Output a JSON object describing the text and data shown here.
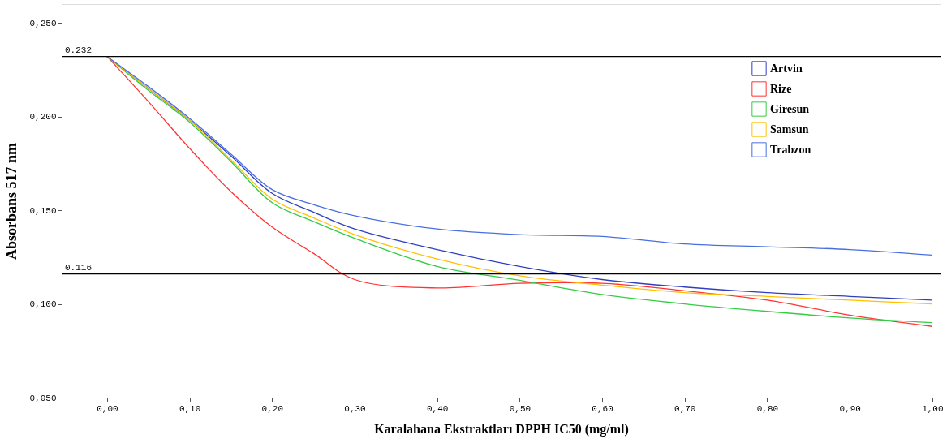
{
  "chart_data": {
    "type": "line",
    "xlabel": "Karalahana Ekstraktları DPPH IC50 (mg/ml)",
    "ylabel": "Absorbans 517 nm",
    "x": [
      0,
      0.05,
      0.1,
      0.15,
      0.2,
      0.25,
      0.3,
      0.4,
      0.5,
      0.6,
      0.7,
      0.8,
      0.9,
      1.0
    ],
    "series": [
      {
        "name": "Artvin",
        "color": "#2f3fbf",
        "values": [
          0.232,
          0.215,
          0.198,
          0.179,
          0.159,
          0.149,
          0.14,
          0.129,
          0.12,
          0.113,
          0.109,
          0.106,
          0.104,
          0.102
        ]
      },
      {
        "name": "Rize",
        "color": "#ff3333",
        "values": [
          0.232,
          0.208,
          0.183,
          0.16,
          0.141,
          0.127,
          0.113,
          0.1085,
          0.111,
          0.111,
          0.107,
          0.102,
          0.094,
          0.088
        ]
      },
      {
        "name": "Giresun",
        "color": "#33cc44",
        "values": [
          0.232,
          0.214,
          0.197,
          0.176,
          0.154,
          0.144,
          0.135,
          0.12,
          0.1126,
          0.105,
          0.1,
          0.096,
          0.0925,
          0.09
        ]
      },
      {
        "name": "Samsun",
        "color": "#ffc000",
        "values": [
          0.232,
          0.215,
          0.198,
          0.177,
          0.156,
          0.146,
          0.137,
          0.124,
          0.115,
          0.11,
          0.106,
          0.104,
          0.102,
          0.1
        ]
      },
      {
        "name": "Trabzon",
        "color": "#4a6fe0",
        "values": [
          0.232,
          0.216,
          0.199,
          0.18,
          0.161,
          0.153,
          0.147,
          0.14,
          0.137,
          0.136,
          0.132,
          0.1305,
          0.129,
          0.126
        ]
      }
    ],
    "xlim": [
      -0.055,
      1.01
    ],
    "ylim": [
      0.05,
      0.26
    ],
    "xticks": [
      {
        "value": 0,
        "label": "0,00"
      },
      {
        "value": 0.1,
        "label": "0,10"
      },
      {
        "value": 0.2,
        "label": "0,20"
      },
      {
        "value": 0.3,
        "label": "0,30"
      },
      {
        "value": 0.4,
        "label": "0,40"
      },
      {
        "value": 0.5,
        "label": "0,50"
      },
      {
        "value": 0.6,
        "label": "0,60"
      },
      {
        "value": 0.7,
        "label": "0,70"
      },
      {
        "value": 0.8,
        "label": "0,80"
      },
      {
        "value": 0.9,
        "label": "0,90"
      },
      {
        "value": 1.0,
        "label": "1,00"
      }
    ],
    "yticks": [
      {
        "value": 0.05,
        "label": "0,050"
      },
      {
        "value": 0.1,
        "label": "0,100"
      },
      {
        "value": 0.15,
        "label": "0,150"
      },
      {
        "value": 0.2,
        "label": "0,200"
      },
      {
        "value": 0.25,
        "label": "0,250"
      }
    ],
    "ref_lines": [
      {
        "axis": "y",
        "value": 0.232,
        "label": "0.232",
        "color": "#000000"
      },
      {
        "axis": "y",
        "value": 0.116,
        "label": "0.116",
        "color": "#000000"
      }
    ],
    "legend": "top right",
    "grid": false,
    "marker": "none",
    "line_style": "solid"
  }
}
